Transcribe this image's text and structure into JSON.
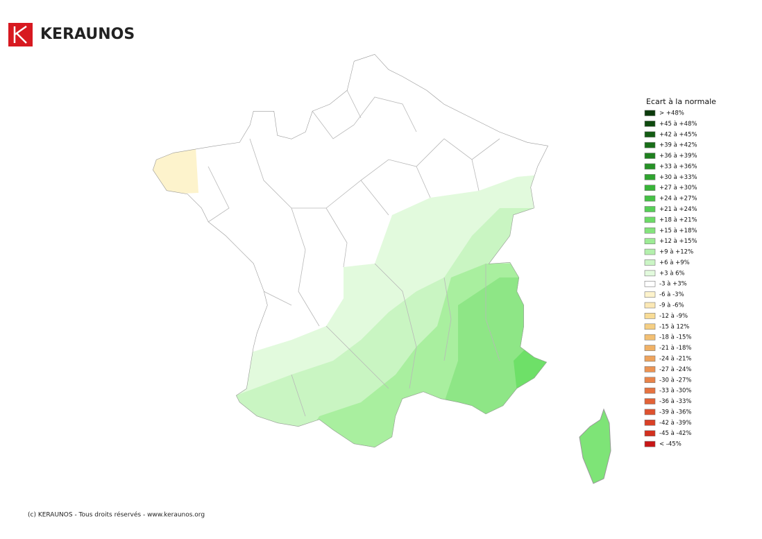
{
  "header": {
    "brand": "KERAUNOS"
  },
  "legend": {
    "title": "Ecart à la normale",
    "items": [
      {
        "label": "> +48%",
        "color": "#0b3a0b"
      },
      {
        "label": "+45 à +48%",
        "color": "#0e4a0e"
      },
      {
        "label": "+42 à +45%",
        "color": "#135c13"
      },
      {
        "label": "+39 à +42%",
        "color": "#186e18"
      },
      {
        "label": "+36 à +39%",
        "color": "#1e801e"
      },
      {
        "label": "+33 à +36%",
        "color": "#259225"
      },
      {
        "label": "+30 à +33%",
        "color": "#2ea42e"
      },
      {
        "label": "+27 à +30%",
        "color": "#38b438"
      },
      {
        "label": "+24 à +27%",
        "color": "#45c245"
      },
      {
        "label": "+21 à +24%",
        "color": "#56cf56"
      },
      {
        "label": "+18 à +21%",
        "color": "#6cdb66"
      },
      {
        "label": "+15 à +18%",
        "color": "#84e37c"
      },
      {
        "label": "+12 à +15%",
        "color": "#9deb95"
      },
      {
        "label": "+9 à +12%",
        "color": "#b4f0ad"
      },
      {
        "label": "+6 à +9%",
        "color": "#cbf5c5"
      },
      {
        "label": "+3 à 6%",
        "color": "#e2fadd"
      },
      {
        "label": "-3 à +3%",
        "color": "#ffffff"
      },
      {
        "label": "-6 à -3%",
        "color": "#fdf3cc"
      },
      {
        "label": "-9 à -6%",
        "color": "#fbe8b5"
      },
      {
        "label": "-12 à -9%",
        "color": "#f8dc96"
      },
      {
        "label": "-15 à 12%",
        "color": "#f5cf84"
      },
      {
        "label": "-18 à -15%",
        "color": "#f3c073"
      },
      {
        "label": "-21 à -18%",
        "color": "#f0b166"
      },
      {
        "label": "-24 à -21%",
        "color": "#eea35c"
      },
      {
        "label": "-27 à -24%",
        "color": "#ec9453"
      },
      {
        "label": "-30 à -27%",
        "color": "#e9844a"
      },
      {
        "label": "-33 à -30%",
        "color": "#e67340"
      },
      {
        "label": "-36 à -33%",
        "color": "#e26237"
      },
      {
        "label": "-39 à -36%",
        "color": "#de512e"
      },
      {
        "label": "-42 à -39%",
        "color": "#d94026"
      },
      {
        "label": "-45 à -42%",
        "color": "#d3301e"
      },
      {
        "label": "< -45%",
        "color": "#c81616"
      }
    ]
  },
  "footer": {
    "text": "(c) KERAUNOS - Tous droits réservés - www.keraunos.org"
  }
}
